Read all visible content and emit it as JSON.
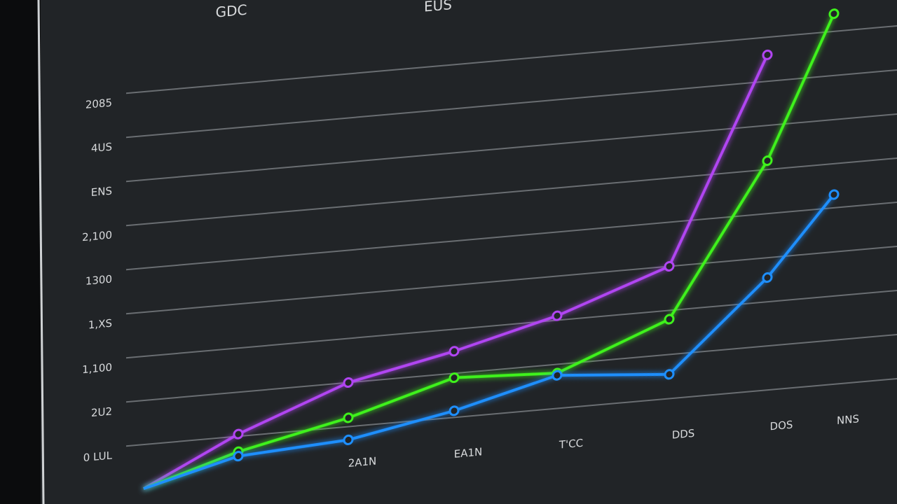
{
  "chart_data": {
    "type": "line",
    "title": "GDC",
    "subtitle": "EUS",
    "categories": [
      null,
      null,
      "2A1N",
      "EA1N",
      "T'CC",
      "DDS",
      "DOS",
      "NNS"
    ],
    "series": [
      {
        "name": "purple",
        "color": "#b145f2",
        "values": [
          -1.0,
          0.05,
          1.0,
          1.5,
          2.1,
          3.0,
          7.6,
          null
        ]
      },
      {
        "name": "green",
        "color": "#3ff21c",
        "values": [
          -1.0,
          -0.35,
          0.2,
          0.9,
          0.8,
          1.8,
          5.2,
          8.4
        ]
      },
      {
        "name": "blue",
        "color": "#1e8fff",
        "values": [
          -1.0,
          -0.45,
          -0.3,
          0.15,
          0.75,
          0.55,
          2.55,
          4.3
        ]
      }
    ],
    "ylim": [
      -1,
      9
    ],
    "yticks": [
      {
        "value": 0,
        "label": "0 LUL"
      },
      {
        "value": 1,
        "label": "2U2"
      },
      {
        "value": 2,
        "label": "1,100"
      },
      {
        "value": 3,
        "label": "1,XS"
      },
      {
        "value": 4,
        "label": "1300"
      },
      {
        "value": 5,
        "label": "2,100"
      },
      {
        "value": 6,
        "label": "ENS"
      },
      {
        "value": 7,
        "label": "4US"
      },
      {
        "value": 8,
        "label": "2085"
      }
    ],
    "grid": true
  }
}
